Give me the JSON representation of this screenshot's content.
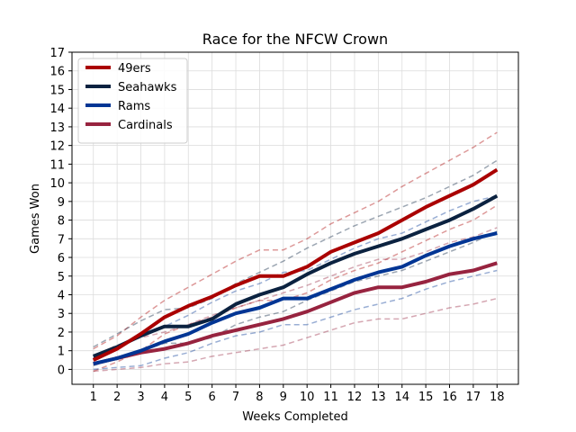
{
  "chart_data": {
    "type": "line",
    "title": "Race for the NFCW Crown",
    "xlabel": "Weeks Completed",
    "ylabel": "Games Won",
    "x": [
      1,
      2,
      3,
      4,
      5,
      6,
      7,
      8,
      9,
      10,
      11,
      12,
      13,
      14,
      15,
      16,
      17,
      18
    ],
    "xlim": [
      0.1,
      18.9
    ],
    "ylim": [
      -0.8,
      17
    ],
    "yticks": [
      0,
      1,
      2,
      3,
      4,
      5,
      6,
      7,
      8,
      9,
      10,
      11,
      12,
      13,
      14,
      15,
      16,
      17
    ],
    "grid": true,
    "legend_position": "top-left",
    "series": [
      {
        "name": "49ers",
        "color": "#aa0000",
        "values": [
          0.5,
          1.1,
          1.9,
          2.8,
          3.4,
          3.9,
          4.5,
          5.0,
          5.0,
          5.5,
          6.3,
          6.8,
          7.3,
          8.0,
          8.7,
          9.3,
          9.9,
          10.7
        ],
        "band_upper": [
          1.1,
          1.8,
          2.8,
          3.7,
          4.4,
          5.1,
          5.8,
          6.4,
          6.4,
          7.0,
          7.8,
          8.4,
          9.0,
          9.8,
          10.5,
          11.2,
          11.9,
          12.7
        ],
        "band_lower": [
          -0.1,
          0.4,
          1.0,
          1.9,
          2.4,
          2.8,
          3.3,
          3.7,
          3.7,
          4.1,
          4.8,
          5.3,
          5.7,
          6.3,
          6.9,
          7.5,
          8.0,
          8.8
        ]
      },
      {
        "name": "Seahawks",
        "color": "#0b2240",
        "values": [
          0.7,
          1.2,
          1.8,
          2.3,
          2.3,
          2.7,
          3.5,
          4.0,
          4.4,
          5.1,
          5.7,
          6.2,
          6.6,
          7.0,
          7.5,
          8.0,
          8.6,
          9.3
        ],
        "band_upper": [
          1.2,
          1.9,
          2.6,
          3.2,
          3.3,
          3.8,
          4.6,
          5.2,
          5.8,
          6.5,
          7.1,
          7.7,
          8.2,
          8.7,
          9.2,
          9.8,
          10.4,
          11.2
        ],
        "band_lower": [
          0.2,
          0.6,
          1.0,
          1.4,
          1.4,
          1.7,
          2.4,
          2.8,
          3.1,
          3.7,
          4.2,
          4.7,
          5.0,
          5.3,
          5.8,
          6.3,
          6.8,
          7.4
        ]
      },
      {
        "name": "Rams",
        "color": "#003594",
        "values": [
          0.3,
          0.6,
          1.0,
          1.5,
          1.9,
          2.5,
          3.0,
          3.3,
          3.8,
          3.8,
          4.3,
          4.8,
          5.2,
          5.5,
          6.1,
          6.6,
          7.0,
          7.3
        ],
        "band_upper": [
          0.6,
          1.1,
          1.8,
          2.3,
          2.9,
          3.6,
          4.2,
          4.6,
          5.2,
          5.3,
          5.9,
          6.5,
          7.0,
          7.3,
          7.9,
          8.5,
          9.0,
          9.3
        ],
        "band_lower": [
          0.0,
          0.1,
          0.2,
          0.6,
          0.9,
          1.4,
          1.8,
          2.0,
          2.4,
          2.4,
          2.8,
          3.2,
          3.5,
          3.8,
          4.3,
          4.7,
          5.0,
          5.3
        ]
      },
      {
        "name": "Cardinals",
        "color": "#97233f",
        "values": [
          0.3,
          0.6,
          0.9,
          1.1,
          1.4,
          1.8,
          2.1,
          2.4,
          2.7,
          3.1,
          3.6,
          4.1,
          4.4,
          4.4,
          4.7,
          5.1,
          5.3,
          5.7
        ],
        "band_upper": [
          0.7,
          1.3,
          1.7,
          2.0,
          2.4,
          2.9,
          3.3,
          3.7,
          4.1,
          4.5,
          5.0,
          5.5,
          5.9,
          5.9,
          6.3,
          6.8,
          7.1,
          7.6
        ],
        "band_lower": [
          -0.1,
          0.0,
          0.1,
          0.3,
          0.4,
          0.7,
          0.9,
          1.1,
          1.3,
          1.7,
          2.1,
          2.5,
          2.7,
          2.7,
          3.0,
          3.3,
          3.5,
          3.8
        ]
      }
    ]
  }
}
